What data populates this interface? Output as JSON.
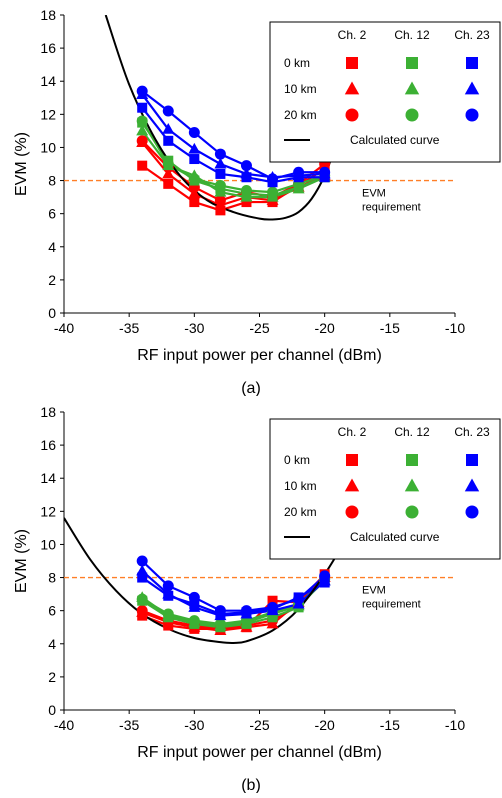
{
  "chart_data": [
    {
      "type": "line",
      "panel_label": "(a)",
      "xlabel": "RF input power per channel (dBm)",
      "ylabel": "EVM (%)",
      "xlim": [
        -40,
        -10
      ],
      "ylim": [
        0,
        18
      ],
      "xticks": [
        -40,
        -35,
        -30,
        -25,
        -20,
        -15,
        -10
      ],
      "yticks": [
        0,
        2,
        4,
        6,
        8,
        10,
        12,
        14,
        16,
        18
      ],
      "threshold": {
        "y": 8,
        "label_line1": "EVM",
        "label_line2": "requirement",
        "color": "#ff7f27"
      },
      "legend": {
        "position": "top-right",
        "columns": [
          "Ch. 2",
          "Ch. 12",
          "Ch. 23"
        ],
        "rows": [
          {
            "label": "0 km",
            "marker": "square"
          },
          {
            "label": "10 km",
            "marker": "triangle"
          },
          {
            "label": "20 km",
            "marker": "circle"
          }
        ],
        "curve_label": "Calculated curve"
      },
      "colors": {
        "Ch. 2": "#ff0000",
        "Ch. 12": "#3cb034",
        "Ch. 23": "#0000ff",
        "curve": "#000000"
      },
      "x": [
        -34,
        -32,
        -30,
        -28,
        -26,
        -24,
        -22,
        -20
      ],
      "series": [
        {
          "channel": "Ch. 2",
          "distance": "0 km",
          "marker": "square",
          "values": [
            8.9,
            7.8,
            6.7,
            6.2,
            6.7,
            6.7,
            7.7,
            8.7
          ]
        },
        {
          "channel": "Ch. 2",
          "distance": "10 km",
          "marker": "triangle",
          "values": [
            10.3,
            8.4,
            7.2,
            6.5,
            7.0,
            6.8,
            7.6,
            8.3
          ]
        },
        {
          "channel": "Ch. 2",
          "distance": "20 km",
          "marker": "circle",
          "values": [
            10.4,
            8.8,
            7.6,
            6.8,
            7.3,
            7.0,
            7.8,
            9.0
          ]
        },
        {
          "channel": "Ch. 12",
          "distance": "0 km",
          "marker": "square",
          "values": [
            11.5,
            9.2,
            8.0,
            7.5,
            7.2,
            7.1,
            7.6,
            8.2
          ]
        },
        {
          "channel": "Ch. 12",
          "distance": "10 km",
          "marker": "triangle",
          "values": [
            11.0,
            8.9,
            8.3,
            7.3,
            7.0,
            7.0,
            7.5,
            8.2
          ]
        },
        {
          "channel": "Ch. 12",
          "distance": "20 km",
          "marker": "circle",
          "values": [
            11.6,
            9.0,
            8.1,
            7.7,
            7.4,
            7.3,
            7.8,
            8.3
          ]
        },
        {
          "channel": "Ch. 23",
          "distance": "0 km",
          "marker": "square",
          "values": [
            12.4,
            10.4,
            9.3,
            8.4,
            8.2,
            7.9,
            8.2,
            8.2
          ]
        },
        {
          "channel": "Ch. 23",
          "distance": "10 km",
          "marker": "triangle",
          "values": [
            13.2,
            11.1,
            9.9,
            9.0,
            8.4,
            8.2,
            8.3,
            8.4
          ]
        },
        {
          "channel": "Ch. 23",
          "distance": "20 km",
          "marker": "circle",
          "values": [
            13.4,
            12.2,
            10.9,
            9.6,
            8.9,
            8.1,
            8.5,
            8.5
          ]
        }
      ],
      "calculated_curve": {
        "x": [
          -36.8,
          -35,
          -33,
          -31,
          -29,
          -27,
          -25,
          -24,
          -23,
          -22,
          -21,
          -20,
          -19.2
        ],
        "y": [
          18,
          13.8,
          10.5,
          8.2,
          6.8,
          6.1,
          5.7,
          5.65,
          5.75,
          6.1,
          6.9,
          8.3,
          10.0
        ]
      }
    },
    {
      "type": "line",
      "panel_label": "(b)",
      "xlabel": "RF input power per channel (dBm)",
      "ylabel": "EVM (%)",
      "xlim": [
        -40,
        -10
      ],
      "ylim": [
        0,
        18
      ],
      "xticks": [
        -40,
        -35,
        -30,
        -25,
        -20,
        -15,
        -10
      ],
      "yticks": [
        0,
        2,
        4,
        6,
        8,
        10,
        12,
        14,
        16,
        18
      ],
      "threshold": {
        "y": 8,
        "label_line1": "EVM",
        "label_line2": "requirement",
        "color": "#ff7f27"
      },
      "legend": {
        "position": "top-right",
        "columns": [
          "Ch. 2",
          "Ch. 12",
          "Ch. 23"
        ],
        "rows": [
          {
            "label": "0 km",
            "marker": "square"
          },
          {
            "label": "10 km",
            "marker": "triangle"
          },
          {
            "label": "20 km",
            "marker": "circle"
          }
        ],
        "curve_label": "Calculated curve"
      },
      "colors": {
        "Ch. 2": "#ff0000",
        "Ch. 12": "#3cb034",
        "Ch. 23": "#0000ff",
        "curve": "#000000"
      },
      "x": [
        -34,
        -32,
        -30,
        -28,
        -26,
        -24,
        -22,
        -20
      ],
      "series": [
        {
          "channel": "Ch. 2",
          "distance": "0 km",
          "marker": "square",
          "values": [
            5.7,
            5.1,
            4.9,
            4.9,
            5.0,
            6.6,
            6.5,
            8.2
          ]
        },
        {
          "channel": "Ch. 2",
          "distance": "10 km",
          "marker": "triangle",
          "values": [
            5.9,
            5.3,
            5.0,
            4.8,
            5.0,
            5.2,
            6.5,
            8.0
          ]
        },
        {
          "channel": "Ch. 2",
          "distance": "20 km",
          "marker": "circle",
          "values": [
            6.0,
            5.4,
            5.1,
            4.9,
            5.1,
            5.4,
            6.3,
            8.0
          ]
        },
        {
          "channel": "Ch. 12",
          "distance": "0 km",
          "marker": "square",
          "values": [
            6.6,
            5.6,
            5.2,
            5.0,
            5.2,
            5.6,
            6.2,
            7.9
          ]
        },
        {
          "channel": "Ch. 12",
          "distance": "10 km",
          "marker": "triangle",
          "values": [
            6.8,
            5.7,
            5.3,
            5.1,
            5.3,
            5.8,
            6.3,
            7.8
          ]
        },
        {
          "channel": "Ch. 12",
          "distance": "20 km",
          "marker": "circle",
          "values": [
            6.7,
            5.8,
            5.4,
            5.2,
            5.4,
            5.9,
            6.4,
            7.9
          ]
        },
        {
          "channel": "Ch. 23",
          "distance": "0 km",
          "marker": "square",
          "values": [
            8.0,
            6.9,
            6.4,
            5.8,
            5.9,
            6.1,
            6.8,
            7.7
          ]
        },
        {
          "channel": "Ch. 23",
          "distance": "10 km",
          "marker": "triangle",
          "values": [
            8.4,
            7.0,
            6.2,
            5.7,
            5.8,
            6.0,
            6.4,
            7.8
          ]
        },
        {
          "channel": "Ch. 23",
          "distance": "20 km",
          "marker": "circle",
          "values": [
            9.0,
            7.5,
            6.8,
            6.0,
            6.0,
            6.2,
            6.7,
            8.1
          ]
        }
      ],
      "calculated_curve": {
        "x": [
          -40,
          -38,
          -36,
          -34,
          -32,
          -30,
          -28,
          -27,
          -26,
          -24,
          -22,
          -20,
          -18.6
        ],
        "y": [
          11.6,
          9.1,
          7.2,
          5.8,
          4.9,
          4.35,
          4.1,
          4.05,
          4.15,
          4.8,
          6.1,
          8.2,
          10.0
        ]
      }
    }
  ]
}
